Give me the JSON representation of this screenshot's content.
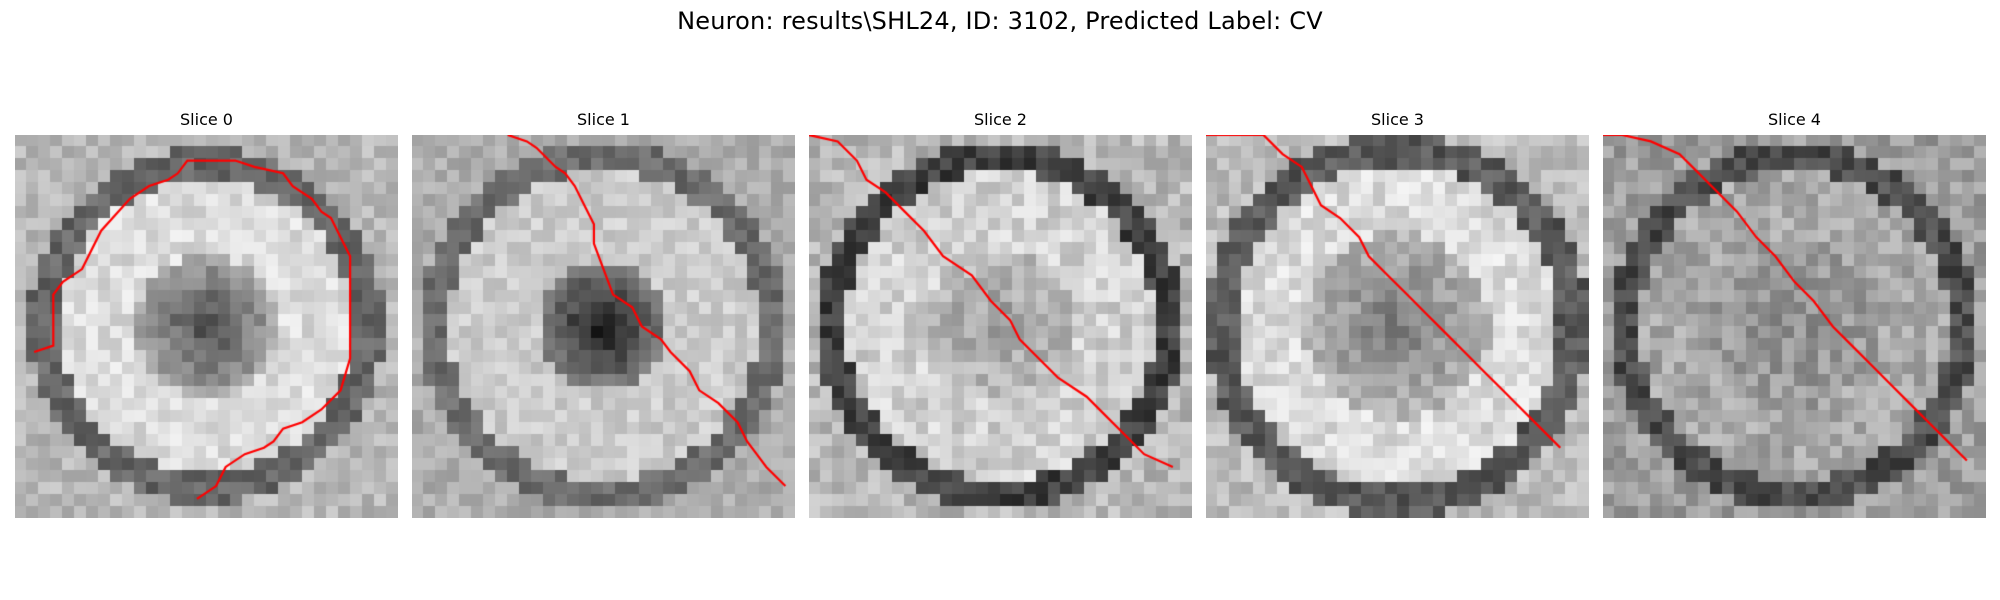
{
  "figure": {
    "title": "Neuron: results\\SHL24, ID: 3102, Predicted Label: CV",
    "colormap": "gray",
    "contour_color": "#ff0000"
  },
  "panels": [
    {
      "title": "Slice 0",
      "image": {
        "background": 0.72,
        "center": 0.3,
        "center_radius": 0.18,
        "ring_value": 0.86,
        "ring_radius": 0.38,
        "outer_value": 0.4,
        "noise": 0.18,
        "seed": 11
      },
      "contour": [
        [
          2,
          34
        ],
        [
          4,
          33
        ],
        [
          4,
          25
        ],
        [
          5,
          23
        ],
        [
          7,
          21
        ],
        [
          9,
          15
        ],
        [
          12,
          10
        ],
        [
          14,
          8
        ],
        [
          16,
          7
        ],
        [
          17,
          6
        ],
        [
          18,
          4
        ],
        [
          23,
          4
        ],
        [
          25,
          5
        ],
        [
          28,
          6
        ],
        [
          29,
          8
        ],
        [
          31,
          10
        ],
        [
          32,
          12
        ],
        [
          33,
          13
        ],
        [
          34,
          16
        ],
        [
          35,
          19
        ],
        [
          35,
          35
        ],
        [
          34,
          40
        ],
        [
          32,
          43
        ],
        [
          30,
          45
        ],
        [
          28,
          46
        ],
        [
          27,
          48
        ],
        [
          26,
          49
        ],
        [
          24,
          50
        ],
        [
          22,
          52
        ],
        [
          21,
          55
        ],
        [
          19,
          57
        ]
      ]
    },
    {
      "title": "Slice 1",
      "image": {
        "background": 0.68,
        "center": 0.08,
        "center_radius": 0.17,
        "ring_value": 0.8,
        "ring_radius": 0.4,
        "outer_value": 0.42,
        "noise": 0.16,
        "seed": 23
      },
      "contour": [
        [
          10,
          0
        ],
        [
          12,
          1
        ],
        [
          13,
          2
        ],
        [
          15,
          5
        ],
        [
          16,
          6
        ],
        [
          17,
          8
        ],
        [
          18,
          11
        ],
        [
          19,
          14
        ],
        [
          19,
          17
        ],
        [
          20,
          21
        ],
        [
          21,
          25
        ],
        [
          23,
          27
        ],
        [
          24,
          30
        ],
        [
          26,
          32
        ],
        [
          27,
          34
        ],
        [
          29,
          37
        ],
        [
          30,
          40
        ],
        [
          32,
          42
        ],
        [
          34,
          45
        ],
        [
          35,
          48
        ],
        [
          36,
          50
        ],
        [
          37,
          52
        ],
        [
          39,
          55
        ]
      ]
    },
    {
      "title": "Slice 2",
      "image": {
        "background": 0.72,
        "center": 0.62,
        "center_radius": 0.2,
        "ring_value": 0.82,
        "ring_radius": 0.4,
        "outer_value": 0.25,
        "noise": 0.22,
        "seed": 37
      },
      "contour": [
        [
          0,
          0
        ],
        [
          3,
          1
        ],
        [
          5,
          4
        ],
        [
          6,
          7
        ],
        [
          8,
          9
        ],
        [
          10,
          12
        ],
        [
          12,
          15
        ],
        [
          14,
          19
        ],
        [
          17,
          22
        ],
        [
          19,
          26
        ],
        [
          21,
          29
        ],
        [
          22,
          32
        ],
        [
          24,
          35
        ],
        [
          26,
          38
        ],
        [
          29,
          41
        ],
        [
          31,
          44
        ],
        [
          33,
          47
        ],
        [
          35,
          50
        ],
        [
          38,
          52
        ]
      ]
    },
    {
      "title": "Slice 3",
      "image": {
        "background": 0.74,
        "center": 0.48,
        "center_radius": 0.24,
        "ring_value": 0.86,
        "ring_radius": 0.42,
        "outer_value": 0.35,
        "noise": 0.2,
        "seed": 51
      },
      "contour": [
        [
          0,
          0
        ],
        [
          3,
          0
        ],
        [
          6,
          0
        ],
        [
          8,
          3
        ],
        [
          10,
          5
        ],
        [
          11,
          8
        ],
        [
          12,
          11
        ],
        [
          14,
          13
        ],
        [
          16,
          16
        ],
        [
          17,
          19
        ],
        [
          19,
          22
        ],
        [
          21,
          25
        ],
        [
          23,
          28
        ],
        [
          25,
          31
        ],
        [
          27,
          34
        ],
        [
          29,
          37
        ],
        [
          31,
          40
        ],
        [
          33,
          43
        ],
        [
          35,
          46
        ],
        [
          37,
          49
        ]
      ]
    },
    {
      "title": "Slice 4",
      "image": {
        "background": 0.62,
        "center": 0.56,
        "center_radius": 0.22,
        "ring_value": 0.66,
        "ring_radius": 0.4,
        "outer_value": 0.3,
        "noise": 0.22,
        "seed": 67
      },
      "contour": [
        [
          0,
          0
        ],
        [
          2,
          0
        ],
        [
          5,
          1
        ],
        [
          8,
          3
        ],
        [
          10,
          6
        ],
        [
          12,
          9
        ],
        [
          14,
          12
        ],
        [
          16,
          16
        ],
        [
          18,
          19
        ],
        [
          20,
          23
        ],
        [
          22,
          26
        ],
        [
          24,
          30
        ],
        [
          26,
          33
        ],
        [
          28,
          36
        ],
        [
          30,
          39
        ],
        [
          32,
          42
        ],
        [
          34,
          45
        ],
        [
          36,
          48
        ],
        [
          38,
          51
        ]
      ]
    }
  ]
}
